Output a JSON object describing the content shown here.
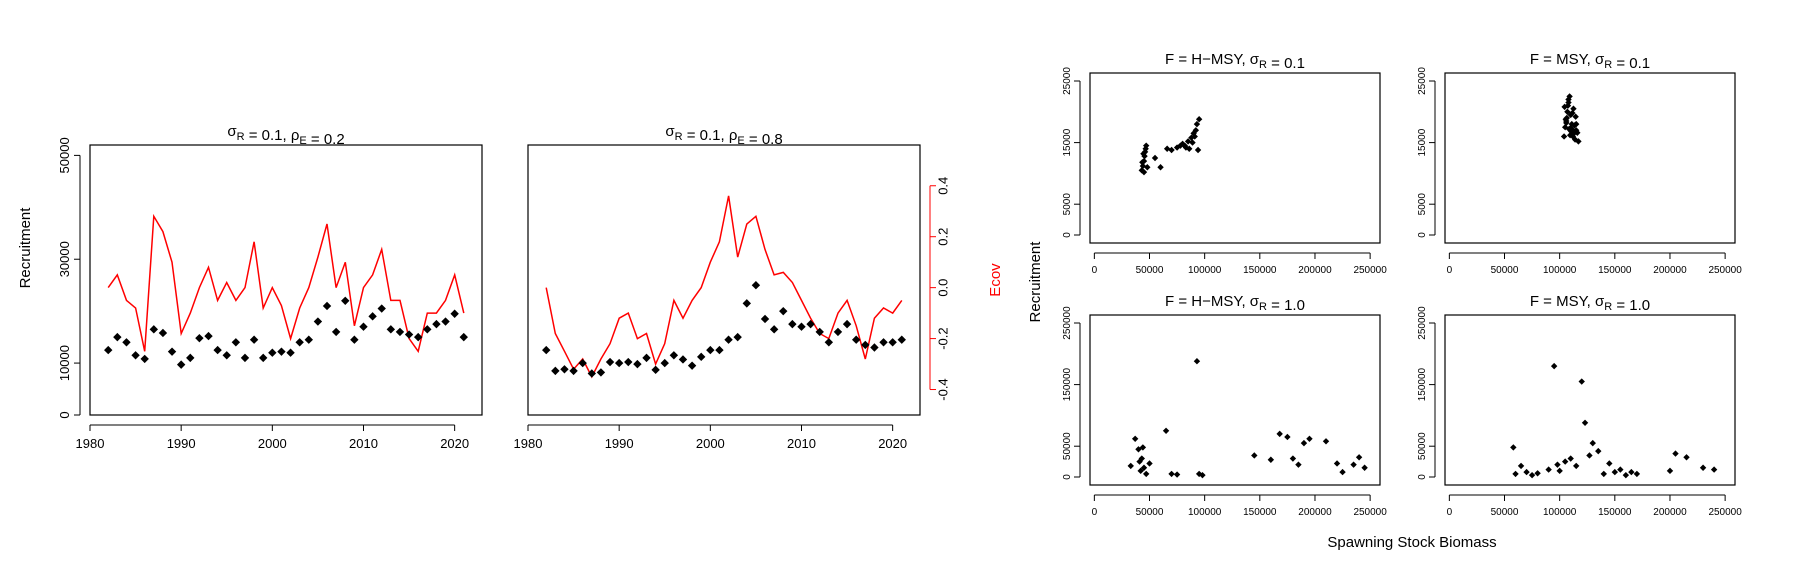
{
  "figure": {
    "left_ylabel": "Recruitment",
    "right_ylabel": "Ecov",
    "right_ylabel_color": "#ff0000",
    "grid_ylabel": "Recruitment",
    "grid_xlabel": "Spawning Stock Biomass"
  },
  "chart_data": [
    {
      "type": "scatter+line",
      "title_prefix": "σ",
      "title_sub1": "R",
      "title_mid": " = 0.1, ρ",
      "title_sub2": "E",
      "title_suffix": " = 0.2",
      "xlim": [
        1980,
        2023
      ],
      "ylim": [
        0,
        52000
      ],
      "xticks": [
        1980,
        1990,
        2000,
        2010,
        2020
      ],
      "yticks": [
        0,
        10000,
        30000,
        50000
      ],
      "ytick_labels": [
        "0",
        "10000",
        "30000",
        "50000"
      ],
      "y2lim": [
        -0.5,
        0.56
      ],
      "line_color": "#ff0000",
      "point_color": "#000000",
      "years": [
        1982,
        1983,
        1984,
        1985,
        1986,
        1987,
        1988,
        1989,
        1990,
        1991,
        1992,
        1993,
        1994,
        1995,
        1996,
        1997,
        1998,
        1999,
        2000,
        2001,
        2002,
        2003,
        2004,
        2005,
        2006,
        2007,
        2008,
        2009,
        2010,
        2011,
        2012,
        2013,
        2014,
        2015,
        2016,
        2017,
        2018,
        2019,
        2020,
        2021
      ],
      "recruitment": [
        12500,
        15000,
        14000,
        11500,
        10800,
        16500,
        15800,
        12200,
        9700,
        11000,
        14800,
        15200,
        12500,
        11500,
        14000,
        11000,
        14500,
        11000,
        12000,
        12200,
        12000,
        14000,
        14500,
        18000,
        21000,
        16000,
        22000,
        14500,
        17000,
        19000,
        20500,
        16500,
        16000,
        15500,
        15000,
        16500,
        17500,
        18000,
        19500,
        15000
      ],
      "ecov": [
        0.0,
        0.05,
        -0.05,
        -0.08,
        -0.25,
        0.28,
        0.22,
        0.1,
        -0.18,
        -0.1,
        0.0,
        0.08,
        -0.05,
        0.02,
        -0.05,
        0.0,
        0.18,
        -0.08,
        0.0,
        -0.07,
        -0.2,
        -0.08,
        0.0,
        0.12,
        0.25,
        0.0,
        0.1,
        -0.15,
        0.0,
        0.05,
        0.15,
        -0.05,
        -0.05,
        -0.2,
        -0.25,
        -0.1,
        -0.1,
        -0.05,
        0.05,
        -0.1
      ]
    },
    {
      "type": "scatter+line",
      "title_prefix": "σ",
      "title_sub1": "R",
      "title_mid": " = 0.1, ρ",
      "title_sub2": "E",
      "title_suffix": " = 0.8",
      "xlim": [
        1980,
        2023
      ],
      "ylim": [
        0,
        52000
      ],
      "xticks": [
        1980,
        1990,
        2000,
        2010,
        2020
      ],
      "y2lim": [
        -0.5,
        0.56
      ],
      "y2ticks": [
        -0.4,
        -0.2,
        0.0,
        0.2,
        0.4
      ],
      "y2tick_labels": [
        "-0.4",
        "-0.2",
        "0.0",
        "0.2",
        "0.4"
      ],
      "line_color": "#ff0000",
      "point_color": "#000000",
      "years": [
        1982,
        1983,
        1984,
        1985,
        1986,
        1987,
        1988,
        1989,
        1990,
        1991,
        1992,
        1993,
        1994,
        1995,
        1996,
        1997,
        1998,
        1999,
        2000,
        2001,
        2002,
        2003,
        2004,
        2005,
        2006,
        2007,
        2008,
        2009,
        2010,
        2011,
        2012,
        2013,
        2014,
        2015,
        2016,
        2017,
        2018,
        2019,
        2020,
        2021
      ],
      "recruitment": [
        12500,
        8500,
        8800,
        8500,
        10000,
        8000,
        8200,
        10200,
        10000,
        10200,
        9800,
        11000,
        8700,
        10000,
        11500,
        10700,
        9500,
        11200,
        12500,
        12500,
        14500,
        15000,
        21500,
        25000,
        18500,
        16500,
        20000,
        17500,
        17000,
        17500,
        16000,
        14000,
        16000,
        17500,
        14500,
        13500,
        13000,
        14000,
        14000,
        14500
      ],
      "ecov": [
        0.0,
        -0.18,
        -0.25,
        -0.32,
        -0.28,
        -0.35,
        -0.28,
        -0.22,
        -0.12,
        -0.1,
        -0.2,
        -0.18,
        -0.3,
        -0.22,
        -0.05,
        -0.12,
        -0.05,
        0.0,
        0.1,
        0.18,
        0.36,
        0.12,
        0.25,
        0.28,
        0.15,
        0.05,
        0.06,
        0.02,
        -0.05,
        -0.12,
        -0.18,
        -0.2,
        -0.1,
        -0.05,
        -0.15,
        -0.28,
        -0.12,
        -0.08,
        -0.1,
        -0.05
      ]
    },
    {
      "type": "scatter",
      "title_prefix": "F = H−MSY, σ",
      "title_sub": "R",
      "title_suffix": " = 0.1",
      "xlim": [
        0,
        255000
      ],
      "ylim": [
        0,
        25000
      ],
      "xticks": [
        0,
        50000,
        100000,
        150000,
        200000,
        250000
      ],
      "yticks": [
        0,
        5000,
        15000,
        25000
      ],
      "ytick_labels": [
        "0",
        "5000",
        "15000",
        "25000"
      ],
      "x": [
        43000,
        44000,
        45000,
        45500,
        46000,
        46500,
        44500,
        43500,
        47000,
        48000,
        45000,
        60000,
        55000,
        66000,
        70000,
        75000,
        78000,
        80000,
        83000,
        85000,
        88000,
        90000,
        92000,
        93000,
        95000,
        91000,
        89000,
        86000,
        82000,
        94000
      ],
      "y": [
        10500,
        11200,
        12000,
        12800,
        13500,
        14000,
        13200,
        11800,
        14500,
        11000,
        10200,
        11000,
        12500,
        14000,
        13800,
        14200,
        14500,
        14800,
        14200,
        15200,
        15800,
        16500,
        17000,
        18000,
        18800,
        16000,
        15000,
        14000,
        14500,
        13800
      ]
    },
    {
      "type": "scatter",
      "title_prefix": "F = MSY, σ",
      "title_sub": "R",
      "title_suffix": " = 0.1",
      "xlim": [
        0,
        255000
      ],
      "ylim": [
        0,
        25000
      ],
      "xticks": [
        0,
        50000,
        100000,
        150000,
        200000,
        250000
      ],
      "yticks": [
        0,
        5000,
        15000,
        25000
      ],
      "ytick_labels": [
        "0",
        "5000",
        "15000",
        "25000"
      ],
      "x": [
        104000,
        105000,
        106000,
        107000,
        108000,
        109000,
        110000,
        111000,
        112000,
        113000,
        114000,
        115000,
        106500,
        108500,
        110500,
        112500,
        107500,
        109500,
        111500,
        113500,
        105500,
        116000,
        117000,
        104500,
        114500,
        110000,
        108000,
        112000,
        106000,
        115000
      ],
      "y": [
        16000,
        17500,
        18500,
        20000,
        21500,
        22500,
        19500,
        18000,
        17000,
        16500,
        15500,
        18000,
        19000,
        17200,
        16800,
        20500,
        21000,
        16200,
        19800,
        17800,
        18800,
        16600,
        15200,
        20800,
        19200,
        17400,
        22000,
        16000,
        18200,
        17000
      ]
    },
    {
      "type": "scatter",
      "title_prefix": "F = H−MSY, σ",
      "title_sub": "R",
      "title_suffix": " = 1.0",
      "xlim": [
        0,
        255000
      ],
      "ylim": [
        0,
        250000
      ],
      "xticks": [
        0,
        50000,
        100000,
        150000,
        200000,
        250000
      ],
      "yticks": [
        0,
        50000,
        150000,
        250000
      ],
      "ytick_labels": [
        "0",
        "50000",
        "150000",
        "250000"
      ],
      "x": [
        33000,
        37000,
        40000,
        41000,
        42000,
        43000,
        44000,
        45000,
        47000,
        50000,
        65000,
        70000,
        75000,
        93000,
        95000,
        98000,
        145000,
        160000,
        168000,
        175000,
        180000,
        185000,
        190000,
        195000,
        210000,
        220000,
        225000,
        235000,
        240000,
        245000
      ],
      "y": [
        18000,
        62000,
        45000,
        25000,
        10000,
        30000,
        48000,
        15000,
        5000,
        22000,
        75000,
        5000,
        4000,
        188000,
        5000,
        3000,
        35000,
        28000,
        70000,
        65000,
        30000,
        20000,
        55000,
        62000,
        58000,
        22000,
        8000,
        20000,
        32000,
        15000
      ]
    },
    {
      "type": "scatter",
      "title_prefix": "F = MSY, σ",
      "title_sub": "R",
      "title_suffix": " = 1.0",
      "xlim": [
        0,
        255000
      ],
      "ylim": [
        0,
        250000
      ],
      "xticks": [
        0,
        50000,
        100000,
        150000,
        200000,
        250000
      ],
      "yticks": [
        0,
        50000,
        150000,
        250000
      ],
      "ytick_labels": [
        "0",
        "50000",
        "150000",
        "250000"
      ],
      "x": [
        58000,
        60000,
        65000,
        70000,
        75000,
        80000,
        90000,
        95000,
        98000,
        100000,
        105000,
        110000,
        115000,
        120000,
        123000,
        127000,
        130000,
        135000,
        140000,
        145000,
        150000,
        155000,
        160000,
        165000,
        170000,
        200000,
        205000,
        215000,
        230000,
        240000
      ],
      "y": [
        48000,
        5000,
        18000,
        8000,
        3000,
        6000,
        12000,
        180000,
        20000,
        10000,
        25000,
        30000,
        18000,
        155000,
        88000,
        35000,
        55000,
        42000,
        5000,
        22000,
        8000,
        12000,
        3000,
        8000,
        5000,
        10000,
        38000,
        32000,
        15000,
        12000
      ]
    }
  ]
}
